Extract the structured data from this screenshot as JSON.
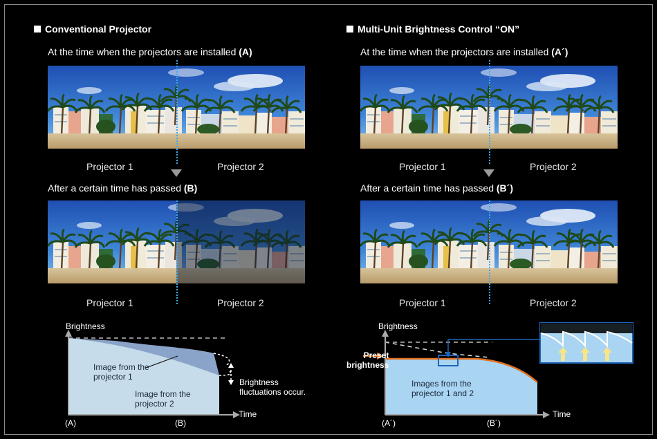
{
  "left": {
    "heading": "Conventional Projector",
    "installed_text": "At the time when the projectors are installed",
    "installed_tag": "(A)",
    "passed_text": "After a certain time has passed",
    "passed_tag": "(B)",
    "projector1": "Projector 1",
    "projector2": "Projector 2",
    "graph": {
      "ylabel": "Brightness",
      "xlabel": "Time",
      "tick_a": "(A)",
      "tick_b": "(B)",
      "label_p1_line1": "Image from the",
      "label_p1_line2": "projector 1",
      "label_p2_line1": "Image from the",
      "label_p2_line2": "projector 2",
      "fluct_line1": "Brightness",
      "fluct_line2": "fluctuations occur."
    }
  },
  "right": {
    "heading": "Multi-Unit Brightness Control “ON”",
    "installed_text": "At the time when the projectors are installed",
    "installed_tag": "(A´)",
    "passed_text": "After a certain time has passed",
    "passed_tag": "(B´)",
    "projector1": "Projector 1",
    "projector2": "Projector 2",
    "graph": {
      "ylabel": "Brightness",
      "xlabel": "Time",
      "tick_a": "(A´)",
      "tick_b": "(B´)",
      "preset_line1": "Preset",
      "preset_line2": "brightness",
      "label_line1": "Images from the",
      "label_line2": "projector 1 and 2"
    }
  },
  "colors": {
    "background": "#000000",
    "graph_fill_light": "#c7dcea",
    "graph_fill_mid": "#8aa3c8",
    "graph_fill_right": "#a9d4f2",
    "preset_line": "#e2701f",
    "zoom_border": "#1f64b8",
    "divider_dots": "#3fa8f0"
  }
}
